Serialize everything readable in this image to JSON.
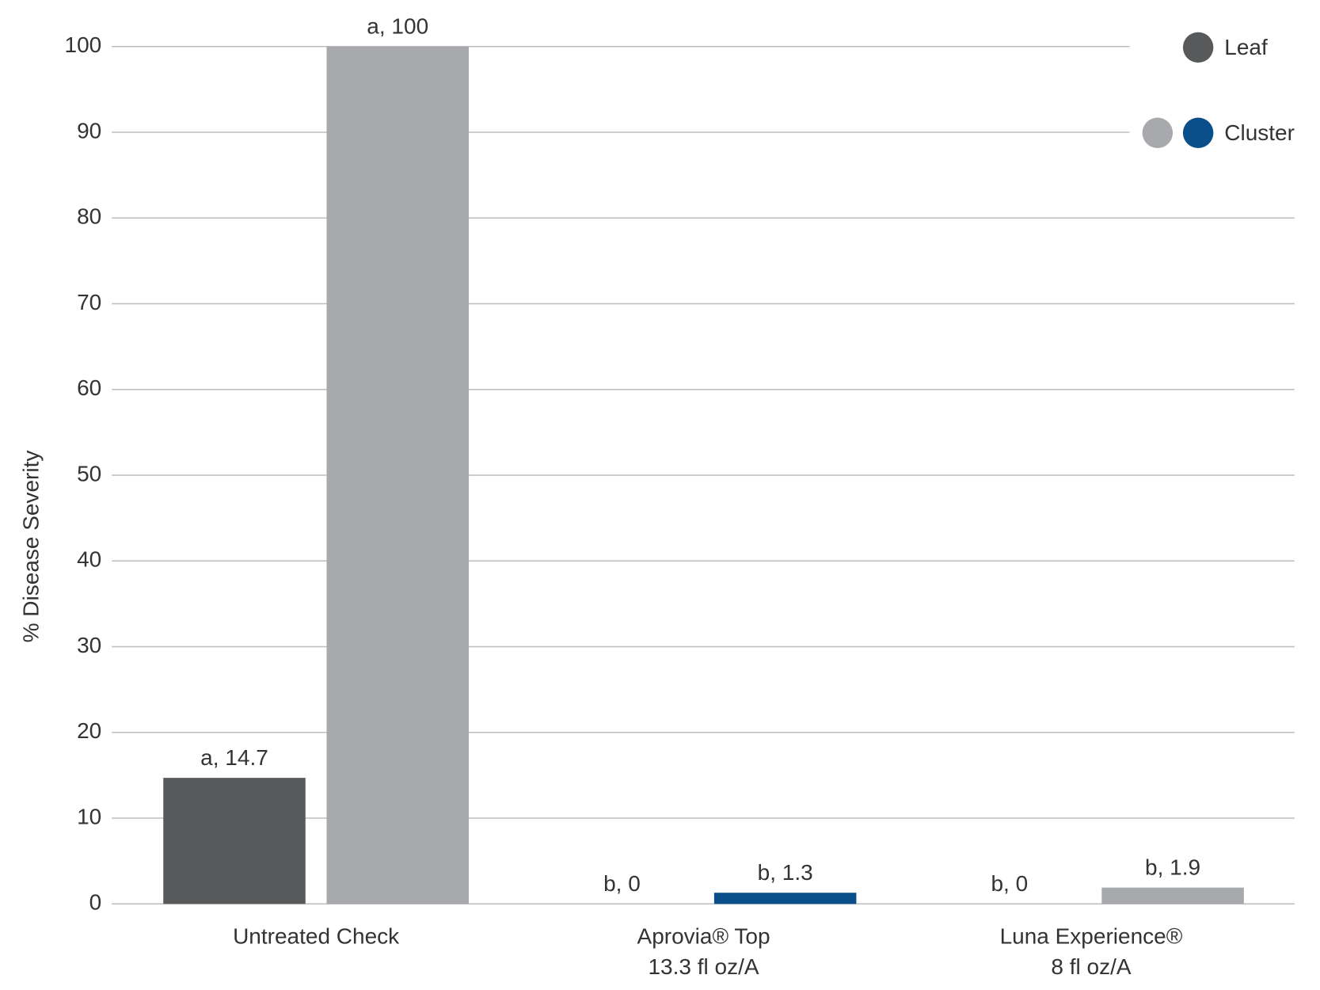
{
  "chart_data": {
    "type": "bar",
    "y_label": "% Disease Severity",
    "categories": [
      [
        "Untreated Check"
      ],
      [
        "Aprovia® Top",
        "13.3 fl oz/A"
      ],
      [
        "Luna Experience®",
        "8 fl oz/A"
      ]
    ],
    "series": [
      {
        "name": "Leaf",
        "color": "#58595b",
        "values": [
          14.7,
          0,
          0
        ],
        "value_labels": [
          "a, 14.7",
          "b, 0",
          "b, 0"
        ]
      },
      {
        "name": "Cluster",
        "color": "#a7a9ac",
        "colors": [
          "#a7a9ac",
          "#0b4f8a",
          "#a7a9ac"
        ],
        "values": [
          100,
          1.3,
          1.9
        ],
        "value_labels": [
          "a, 100",
          "b, 1.3",
          "b, 1.9"
        ]
      }
    ],
    "ylim": [
      0,
      100
    ],
    "yticks": [
      0,
      10,
      20,
      30,
      40,
      50,
      60,
      70,
      80,
      90,
      100
    ],
    "grid": true,
    "legend": "top-right"
  }
}
